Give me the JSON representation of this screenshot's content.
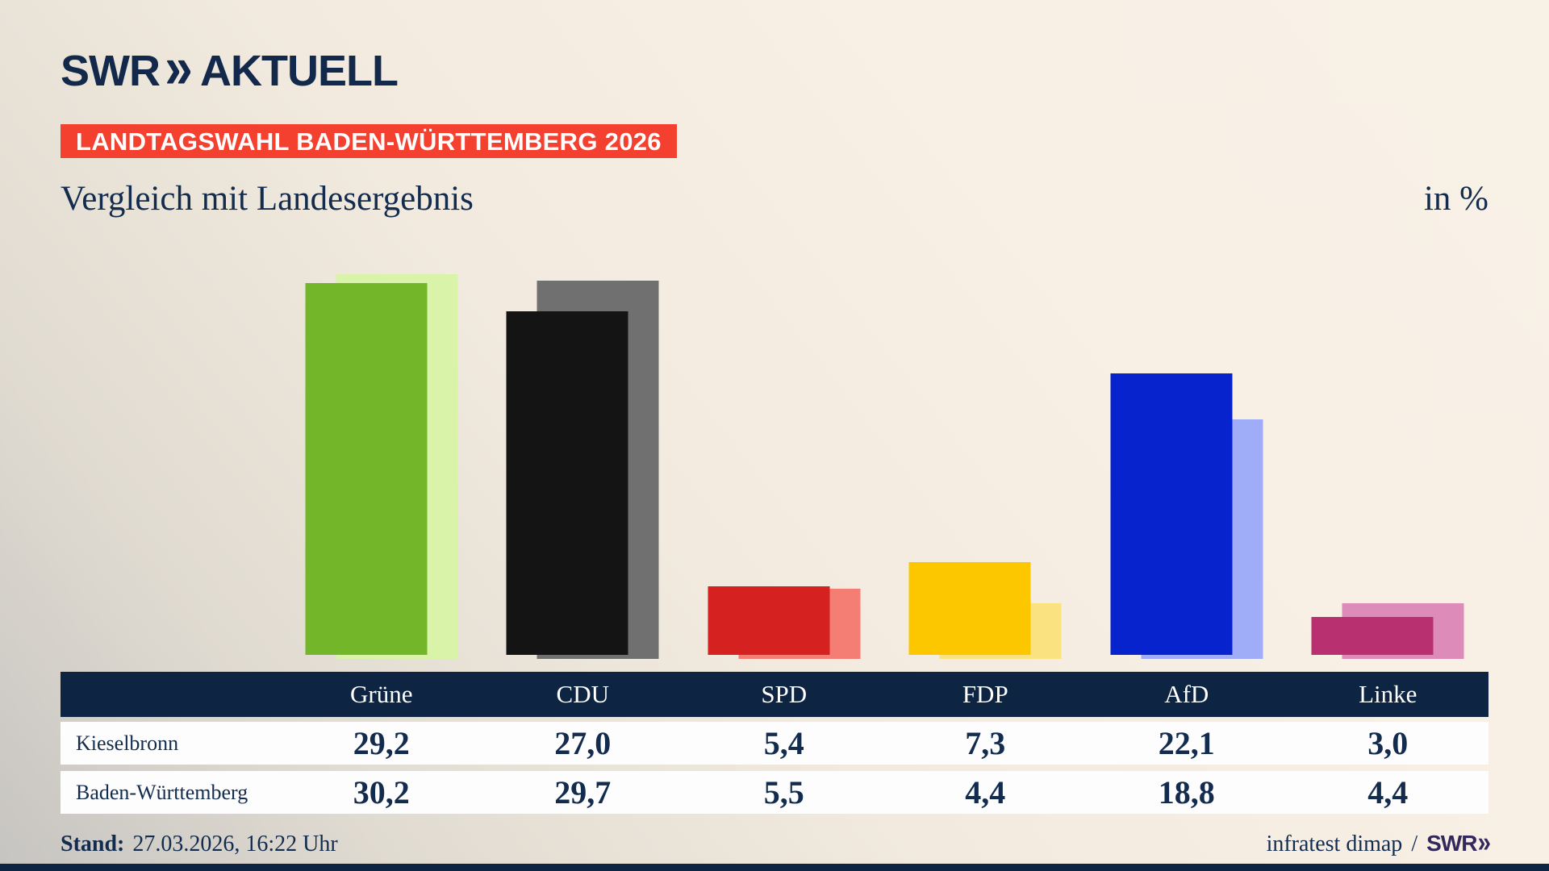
{
  "header": {
    "logo_brand": "SWR",
    "logo_chevrons": "»",
    "logo_suffix": "AKTUELL",
    "banner": "LANDTAGSWAHL BADEN-WÜRTTEMBERG 2026",
    "title": "Vergleich mit Landesergebnis",
    "unit_label": "in %"
  },
  "chart_data": {
    "type": "bar",
    "title": "Vergleich mit Landesergebnis",
    "unit": "in %",
    "categories": [
      "Grüne",
      "CDU",
      "SPD",
      "FDP",
      "AfD",
      "Linke"
    ],
    "series": [
      {
        "name": "Kieselbronn",
        "values": [
          29.2,
          27.0,
          5.4,
          7.3,
          22.1,
          3.0
        ]
      },
      {
        "name": "Baden-Württemberg",
        "values": [
          30.2,
          29.7,
          5.5,
          4.4,
          18.8,
          4.4
        ]
      }
    ],
    "colors_front": [
      "#74b62a",
      "#141414",
      "#d52221",
      "#fdc700",
      "#0723cd",
      "#b93071"
    ],
    "colors_back": [
      "#d9f3a9",
      "#707070",
      "#f57e74",
      "#fbe281",
      "#9fadf8",
      "#dd8cba"
    ],
    "value_format": "comma-decimal-one-place",
    "ylim": [
      0,
      32
    ],
    "grid": false,
    "legend_position": "table-below-chart"
  },
  "footer": {
    "stand_label": "Stand:",
    "stand_value": "27.03.2026, 16:22 Uhr",
    "source": "infratest dimap",
    "separator": "/",
    "source_brand": "SWR",
    "source_brand_chevrons": "»"
  },
  "colors": {
    "navy": "#0e2443",
    "text_navy": "#132c4e",
    "banner_red": "#f4402f",
    "background_cream": "#f8f1e6",
    "background_gray": "#c6c4c1",
    "row_white": "#fdfdfd",
    "brand_purple": "#33285c"
  }
}
